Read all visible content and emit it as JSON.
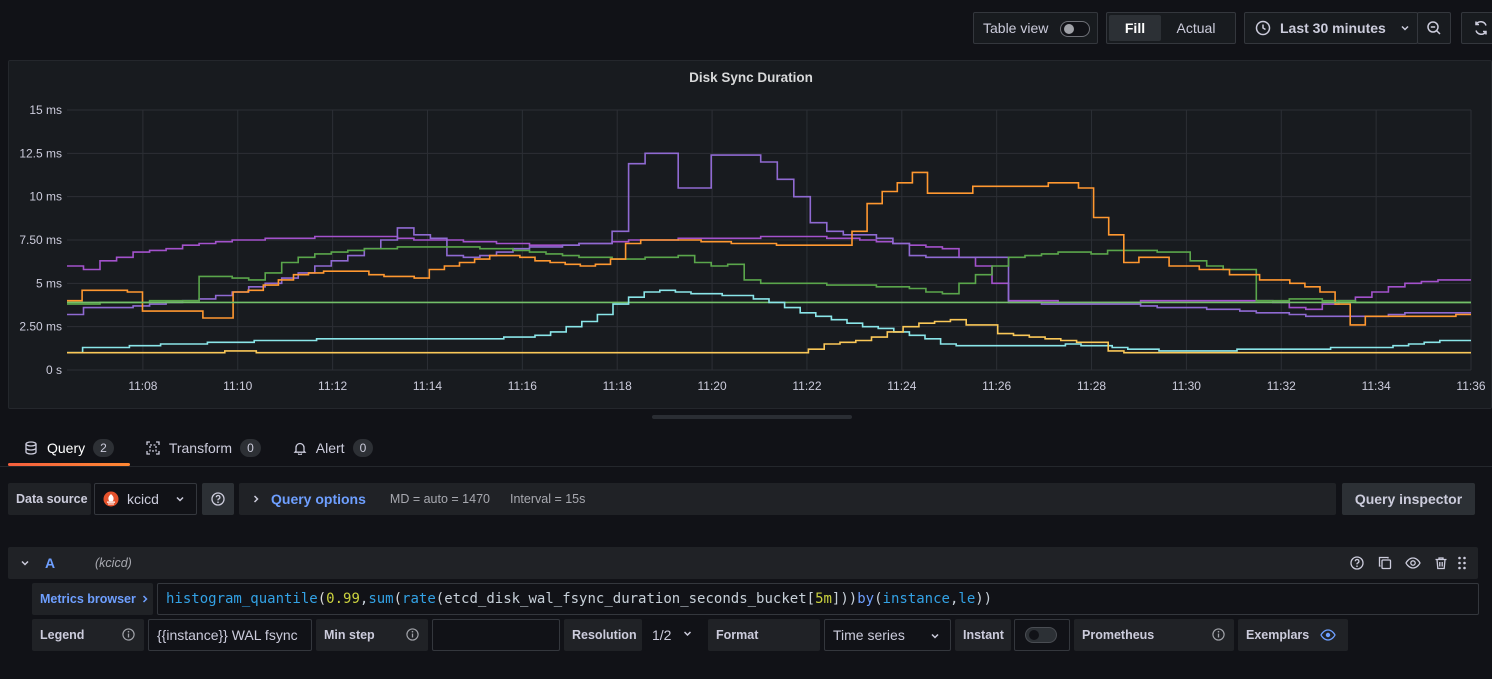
{
  "toolbar": {
    "table_view_label": "Table view",
    "fill_label": "Fill",
    "actual_label": "Actual",
    "time_range": "Last 30 minutes"
  },
  "panel": {
    "title": "Disk Sync Duration"
  },
  "chart_data": {
    "type": "line",
    "title": "Disk Sync Duration",
    "y_unit": "ms",
    "ylim": [
      0,
      15
    ],
    "y_ticks": [
      "0 s",
      "2.50 ms",
      "5 ms",
      "7.50 ms",
      "10 ms",
      "12.5 ms",
      "15 ms"
    ],
    "x_ticks": [
      "11:08",
      "11:10",
      "11:12",
      "11:14",
      "11:16",
      "11:18",
      "11:20",
      "11:22",
      "11:24",
      "11:26",
      "11:28",
      "11:30",
      "11:32",
      "11:34",
      "11:36"
    ],
    "x_range": [
      "11:06:24",
      "11:36:00"
    ],
    "step_minutes": 0.5,
    "grid": true,
    "line_style": "step",
    "series": [
      {
        "color": "#a352cc",
        "values": [
          6,
          5.8,
          6.3,
          6.5,
          6.8,
          6.9,
          7.0,
          7.2,
          7.3,
          7.4,
          7.5,
          7.5,
          7.6,
          7.6,
          7.6,
          7.7,
          7.7,
          7.7,
          7.7,
          7.7,
          7.6,
          7.5,
          7.5,
          7.5,
          7.4,
          7.4,
          7.3,
          7.3,
          7.2,
          7.2,
          7.2,
          7.3,
          7.3,
          7.4,
          7.5,
          7.5,
          7.5,
          7.6,
          7.6,
          7.6,
          7.6,
          7.6,
          7.7,
          7.7,
          7.7,
          7.7,
          7.6,
          7.6,
          7.5,
          7.4,
          7.3,
          7.2,
          7.1,
          7.0,
          6.5,
          6.0,
          5.0,
          4.0,
          4.0,
          4.0,
          3.9,
          3.9,
          3.9,
          3.9,
          3.9,
          4.0,
          4.0,
          4.0,
          4.0,
          4.0,
          4.0,
          4.0,
          4.0,
          3.9,
          3.6,
          3.5,
          3.8,
          4.0,
          4.2,
          4.5,
          4.8,
          5.0,
          5.1,
          5.2,
          5.2
        ]
      },
      {
        "color": "#8f6ad2",
        "values": [
          3.2,
          3.6,
          3.6,
          3.6,
          3.7,
          3.8,
          3.9,
          4.0,
          4.1,
          4.3,
          4.5,
          4.8,
          5.0,
          5.3,
          5.6,
          6.0,
          6.3,
          6.6,
          7.0,
          7.5,
          8.2,
          7.8,
          7.6,
          6.6,
          6.5,
          6.6,
          6.8,
          7.0,
          7.1,
          7.1,
          7.2,
          7.3,
          7.3,
          8.0,
          11.9,
          12.5,
          12.5,
          10.5,
          10.5,
          12.4,
          12.4,
          12.4,
          12.0,
          11.0,
          10.0,
          8.5,
          8.0,
          7.8,
          7.8,
          7.6,
          7.3,
          6.6,
          6.5,
          6.5,
          6.5,
          6.5,
          6.5,
          3.9,
          3.9,
          3.8,
          3.8,
          3.8,
          3.8,
          3.8,
          3.8,
          3.7,
          3.6,
          3.6,
          3.6,
          3.5,
          3.5,
          3.4,
          3.3,
          3.3,
          3.2,
          3.1,
          3.1,
          3.1,
          3.1,
          3.1,
          3.2,
          3.3,
          3.3,
          3.3,
          3.3
        ]
      },
      {
        "color": "#5aa64b",
        "values": [
          3.8,
          3.8,
          3.9,
          3.9,
          3.9,
          4.0,
          4.0,
          4.0,
          5.4,
          5.4,
          5.3,
          5.2,
          5.6,
          6.2,
          6.5,
          6.7,
          6.8,
          6.9,
          7.0,
          7.0,
          7.1,
          7.1,
          7.1,
          7.1,
          7.1,
          7.0,
          7.0,
          6.9,
          6.8,
          6.7,
          6.6,
          6.5,
          6.5,
          6.4,
          6.4,
          6.5,
          6.5,
          6.6,
          6.2,
          6.0,
          6.1,
          5.2,
          5.0,
          5.0,
          5.0,
          5.0,
          4.9,
          4.9,
          4.9,
          4.8,
          4.8,
          4.7,
          4.5,
          4.4,
          5.0,
          5.5,
          6.0,
          6.5,
          6.6,
          6.7,
          6.8,
          6.8,
          6.7,
          6.9,
          6.9,
          6.9,
          6.8,
          6.8,
          6.3,
          6.0,
          5.8,
          5.8,
          4.0,
          4.0,
          4.1,
          4.1,
          4.0,
          4.0,
          3.9,
          3.9,
          3.9,
          3.9,
          3.9,
          3.9,
          3.9
        ]
      },
      {
        "color": "#ff9830",
        "values": [
          4.0,
          4.6,
          4.6,
          4.6,
          4.5,
          3.4,
          3.4,
          3.4,
          3.4,
          3.0,
          3.0,
          4.5,
          4.6,
          4.9,
          5.2,
          5.5,
          5.6,
          5.7,
          5.7,
          5.7,
          5.5,
          5.4,
          5.4,
          5.3,
          5.8,
          6.0,
          6.2,
          6.4,
          6.6,
          6.6,
          6.5,
          6.3,
          6.2,
          6.1,
          6.0,
          6.1,
          6.4,
          7.3,
          7.5,
          7.5,
          7.5,
          7.5,
          7.4,
          7.4,
          7.3,
          7.3,
          7.3,
          7.2,
          7.2,
          7.2,
          7.2,
          7.2,
          8.0,
          9.6,
          10.3,
          10.8,
          11.4,
          10.2,
          10.2,
          10.2,
          10.6,
          10.6,
          10.6,
          10.6,
          10.6,
          10.8,
          10.8,
          10.5,
          8.8,
          7.8,
          6.2,
          6.5,
          6.5,
          6.0,
          6.0,
          5.8,
          5.8,
          5.5,
          5.5,
          5.2,
          5.2,
          5.0,
          4.8,
          4.5,
          3.8,
          2.6,
          3.1,
          3.1,
          3.1,
          3.1,
          3.1,
          3.1,
          3.2
        ]
      },
      {
        "color": "#73bf69",
        "values": [
          3.9,
          3.9,
          3.9,
          3.9,
          3.9,
          3.9,
          3.9,
          3.9,
          3.9,
          3.9,
          3.9,
          3.9,
          3.9,
          3.9,
          3.9,
          3.9,
          3.9,
          3.9,
          3.9,
          3.9,
          3.9,
          3.9,
          3.9,
          3.9,
          3.9,
          3.9,
          3.9,
          3.9,
          3.9,
          3.9
        ]
      },
      {
        "color": "#8ae6e9",
        "values": [
          1.0,
          1.3,
          1.3,
          1.3,
          1.4,
          1.4,
          1.5,
          1.5,
          1.5,
          1.6,
          1.6,
          1.6,
          1.7,
          1.7,
          1.7,
          1.7,
          1.8,
          1.8,
          1.8,
          1.8,
          1.8,
          1.8,
          1.8,
          1.8,
          1.8,
          1.8,
          1.8,
          1.8,
          1.9,
          1.9,
          2.0,
          2.2,
          2.5,
          2.8,
          3.2,
          3.8,
          4.2,
          4.5,
          4.6,
          4.5,
          4.4,
          4.4,
          4.3,
          4.3,
          4.1,
          3.9,
          3.6,
          3.3,
          3.1,
          2.9,
          2.7,
          2.5,
          2.4,
          2.2,
          2.0,
          1.8,
          1.5,
          1.4,
          1.4,
          1.4,
          1.4,
          1.4,
          1.4,
          1.4,
          1.5,
          1.4,
          1.4,
          1.3,
          1.2,
          1.2,
          1.1,
          1.1,
          1.1,
          1.1,
          1.1,
          1.2,
          1.2,
          1.2,
          1.2,
          1.2,
          1.2,
          1.3,
          1.3,
          1.3,
          1.3,
          1.4,
          1.5,
          1.6,
          1.7,
          1.7
        ]
      },
      {
        "color": "#fac858",
        "values": [
          1.0,
          1.0,
          1.0,
          1.0,
          1.0,
          1.0,
          1.0,
          1.0,
          1.0,
          1.0,
          1.1,
          1.1,
          1.0,
          1.0,
          1.0,
          1.0,
          1.0,
          1.0,
          1.0,
          1.0,
          1.0,
          1.0,
          1.0,
          1.0,
          1.0,
          1.0,
          1.0,
          1.0,
          1.0,
          1.0,
          1.0,
          1.0,
          1.0,
          1.0,
          1.0,
          1.0,
          1.0,
          1.0,
          1.0,
          1.0,
          1.0,
          1.0,
          1.0,
          1.0,
          1.0,
          1.0,
          1.0,
          1.2,
          1.5,
          1.6,
          1.7,
          1.9,
          2.2,
          2.5,
          2.7,
          2.8,
          2.9,
          2.6,
          2.6,
          2.1,
          2.0,
          1.9,
          1.8,
          1.7,
          1.6,
          1.6,
          1.1,
          1.0,
          1.0,
          1.0,
          1.0,
          1.0,
          1.0,
          1.0,
          1.0,
          1.0,
          1.0,
          1.0,
          1.0,
          1.0,
          1.0,
          1.0,
          1.0,
          1.0,
          1.0,
          1.0,
          1.0,
          1.0,
          1.0
        ]
      }
    ]
  },
  "tabs": [
    {
      "label": "Query",
      "count": "2"
    },
    {
      "label": "Transform",
      "count": "0"
    },
    {
      "label": "Alert",
      "count": "0"
    }
  ],
  "datasource": {
    "label": "Data source",
    "name": "kcicd",
    "query_options_label": "Query options",
    "md_info": "MD = auto = 1470",
    "interval_info": "Interval = 15s",
    "inspector_label": "Query inspector"
  },
  "query": {
    "ref_id": "A",
    "datasource_hint": "(kcicd)",
    "metrics_browser_label": "Metrics browser",
    "expression_tokens": [
      {
        "t": "histogram_quantile",
        "c": "tok-fn"
      },
      {
        "t": "(",
        "c": "tok-br"
      },
      {
        "t": "0.99",
        "c": "tok-num"
      },
      {
        "t": ", ",
        "c": "tok-plain"
      },
      {
        "t": "sum",
        "c": "tok-fn"
      },
      {
        "t": "(",
        "c": "tok-br"
      },
      {
        "t": "rate",
        "c": "tok-fn"
      },
      {
        "t": "(etcd_disk_wal_fsync_duration_seconds_bucket[",
        "c": "tok-plain"
      },
      {
        "t": "5m",
        "c": "tok-num"
      },
      {
        "t": "])) ",
        "c": "tok-plain"
      },
      {
        "t": "by",
        "c": "tok-kw"
      },
      {
        "t": " (",
        "c": "tok-plain"
      },
      {
        "t": "instance",
        "c": "tok-fn"
      },
      {
        "t": ", ",
        "c": "tok-plain"
      },
      {
        "t": "le",
        "c": "tok-fn"
      },
      {
        "t": "))",
        "c": "tok-plain"
      }
    ],
    "options": {
      "legend_label": "Legend",
      "legend_value": "{{instance}} WAL fsync",
      "min_step_label": "Min step",
      "min_step_value": "",
      "resolution_label": "Resolution",
      "resolution_value": "1/2",
      "format_label": "Format",
      "format_value": "Time series",
      "instant_label": "Instant",
      "instant_on": false,
      "prometheus_label": "Prometheus",
      "exemplars_label": "Exemplars"
    }
  },
  "colors": {
    "accent": "#6e9fff",
    "tab_underline": "#ff8833"
  }
}
